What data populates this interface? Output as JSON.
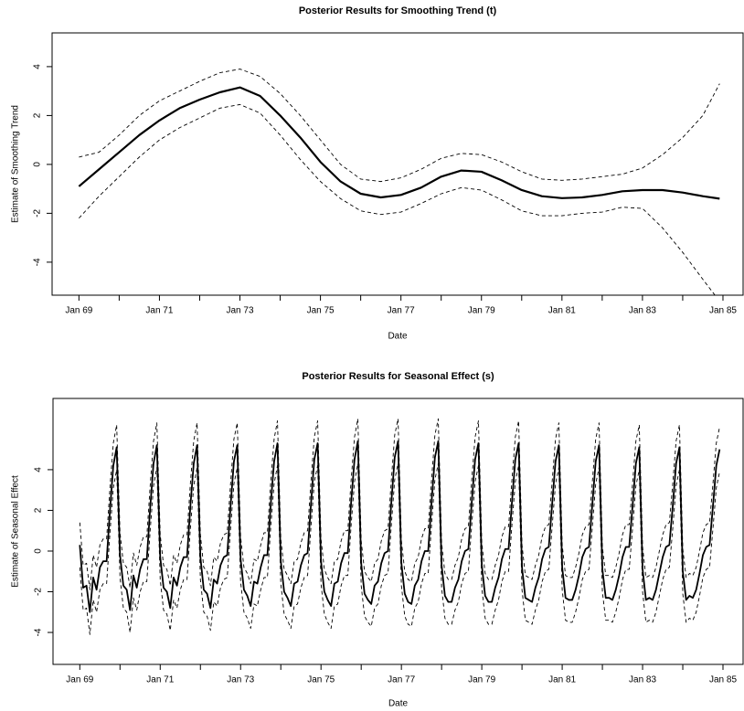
{
  "chart_data": [
    {
      "type": "line",
      "title": "Posterior Results for Smoothing Trend (t)",
      "x_label": "Date",
      "y_label": "Estimate of Smoothing Trend",
      "x": [
        "1969-01",
        "1969-07",
        "1970-01",
        "1970-07",
        "1971-01",
        "1971-07",
        "1972-01",
        "1972-07",
        "1973-01",
        "1973-07",
        "1974-01",
        "1974-07",
        "1975-01",
        "1975-07",
        "1976-01",
        "1976-07",
        "1977-01",
        "1977-07",
        "1978-01",
        "1978-07",
        "1979-01",
        "1979-07",
        "1980-01",
        "1980-07",
        "1981-01",
        "1981-07",
        "1982-01",
        "1982-07",
        "1983-01",
        "1983-07",
        "1984-01",
        "1984-07",
        "1984-12"
      ],
      "series": [
        {
          "color": "#000000",
          "dash": false,
          "width": 2.2,
          "values": [
            -0.9,
            -0.2,
            0.5,
            1.2,
            1.8,
            2.3,
            2.65,
            2.95,
            3.15,
            2.8,
            2.0,
            1.1,
            0.1,
            -0.7,
            -1.2,
            -1.35,
            -1.25,
            -0.95,
            -0.5,
            -0.25,
            -0.3,
            -0.65,
            -1.05,
            -1.3,
            -1.38,
            -1.35,
            -1.25,
            -1.1,
            -1.05,
            -1.05,
            -1.15,
            -1.3,
            -1.4
          ]
        },
        {
          "color": "#000000",
          "dash": true,
          "width": 0.9,
          "values": [
            0.3,
            0.5,
            1.2,
            2.0,
            2.6,
            3.0,
            3.4,
            3.75,
            3.9,
            3.6,
            2.9,
            2.0,
            1.0,
            0.0,
            -0.6,
            -0.7,
            -0.55,
            -0.2,
            0.25,
            0.45,
            0.4,
            0.1,
            -0.3,
            -0.6,
            -0.65,
            -0.6,
            -0.5,
            -0.4,
            -0.15,
            0.4,
            1.1,
            2.0,
            3.3
          ]
        },
        {
          "color": "#000000",
          "dash": true,
          "width": 0.9,
          "values": [
            -2.2,
            -1.3,
            -0.5,
            0.3,
            1.0,
            1.5,
            1.9,
            2.3,
            2.45,
            2.1,
            1.2,
            0.2,
            -0.7,
            -1.4,
            -1.9,
            -2.05,
            -1.95,
            -1.6,
            -1.2,
            -0.95,
            -1.05,
            -1.45,
            -1.9,
            -2.1,
            -2.1,
            -2.0,
            -1.95,
            -1.75,
            -1.8,
            -2.6,
            -3.6,
            -4.7,
            -5.6
          ]
        }
      ],
      "xlim": [
        "1968-05",
        "1985-07"
      ],
      "xticks": [
        {
          "value": "1969-01",
          "label": "Jan 69"
        },
        {
          "value": "1971-01",
          "label": "Jan 71"
        },
        {
          "value": "1973-01",
          "label": "Jan 73"
        },
        {
          "value": "1975-01",
          "label": "Jan 75"
        },
        {
          "value": "1977-01",
          "label": "Jan 77"
        },
        {
          "value": "1979-01",
          "label": "Jan 79"
        },
        {
          "value": "1981-01",
          "label": "Jan 81"
        },
        {
          "value": "1983-01",
          "label": "Jan 83"
        },
        {
          "value": "1985-01",
          "label": "Jan 85"
        }
      ],
      "xminorticks": [
        "1970-01",
        "1972-01",
        "1974-01",
        "1976-01",
        "1978-01",
        "1980-01",
        "1982-01",
        "1984-01"
      ],
      "ylim": [
        -5.35,
        5.38
      ],
      "yticks": [
        -4,
        -2,
        0,
        2,
        4
      ]
    },
    {
      "type": "line",
      "title": "Posterior Results for Seasonal Effect (s)",
      "x_label": "Date",
      "y_label": "Estimate of Seasonal Effect",
      "x": [
        "1969-01",
        "1969-02",
        "1969-03",
        "1969-04",
        "1969-05",
        "1969-06",
        "1969-07",
        "1969-08",
        "1969-09",
        "1969-10",
        "1969-11",
        "1969-12",
        "1970-01",
        "1970-02",
        "1970-03",
        "1970-04",
        "1970-05",
        "1970-06",
        "1970-07",
        "1970-08",
        "1970-09",
        "1970-10",
        "1970-11",
        "1970-12",
        "1971-01",
        "1971-02",
        "1971-03",
        "1971-04",
        "1971-05",
        "1971-06",
        "1971-07",
        "1971-08",
        "1971-09",
        "1971-10",
        "1971-11",
        "1971-12",
        "1972-01",
        "1972-02",
        "1972-03",
        "1972-04",
        "1972-05",
        "1972-06",
        "1972-07",
        "1972-08",
        "1972-09",
        "1972-10",
        "1972-11",
        "1972-12",
        "1973-01",
        "1973-02",
        "1973-03",
        "1973-04",
        "1973-05",
        "1973-06",
        "1973-07",
        "1973-08",
        "1973-09",
        "1973-10",
        "1973-11",
        "1973-12",
        "1974-01",
        "1974-02",
        "1974-03",
        "1974-04",
        "1974-05",
        "1974-06",
        "1974-07",
        "1974-08",
        "1974-09",
        "1974-10",
        "1974-11",
        "1974-12",
        "1975-01",
        "1975-02",
        "1975-03",
        "1975-04",
        "1975-05",
        "1975-06",
        "1975-07",
        "1975-08",
        "1975-09",
        "1975-10",
        "1975-11",
        "1975-12",
        "1976-01",
        "1976-02",
        "1976-03",
        "1976-04",
        "1976-05",
        "1976-06",
        "1976-07",
        "1976-08",
        "1976-09",
        "1976-10",
        "1976-11",
        "1976-12",
        "1977-01",
        "1977-02",
        "1977-03",
        "1977-04",
        "1977-05",
        "1977-06",
        "1977-07",
        "1977-08",
        "1977-09",
        "1977-10",
        "1977-11",
        "1977-12",
        "1978-01",
        "1978-02",
        "1978-03",
        "1978-04",
        "1978-05",
        "1978-06",
        "1978-07",
        "1978-08",
        "1978-09",
        "1978-10",
        "1978-11",
        "1978-12",
        "1979-01",
        "1979-02",
        "1979-03",
        "1979-04",
        "1979-05",
        "1979-06",
        "1979-07",
        "1979-08",
        "1979-09",
        "1979-10",
        "1979-11",
        "1979-12",
        "1980-01",
        "1980-02",
        "1980-03",
        "1980-04",
        "1980-05",
        "1980-06",
        "1980-07",
        "1980-08",
        "1980-09",
        "1980-10",
        "1980-11",
        "1980-12",
        "1981-01",
        "1981-02",
        "1981-03",
        "1981-04",
        "1981-05",
        "1981-06",
        "1981-07",
        "1981-08",
        "1981-09",
        "1981-10",
        "1981-11",
        "1981-12",
        "1982-01",
        "1982-02",
        "1982-03",
        "1982-04",
        "1982-05",
        "1982-06",
        "1982-07",
        "1982-08",
        "1982-09",
        "1982-10",
        "1982-11",
        "1982-12",
        "1983-01",
        "1983-02",
        "1983-03",
        "1983-04",
        "1983-05",
        "1983-06",
        "1983-07",
        "1983-08",
        "1983-09",
        "1983-10",
        "1983-11",
        "1983-12",
        "1984-01",
        "1984-02",
        "1984-03",
        "1984-04",
        "1984-05",
        "1984-06",
        "1984-07",
        "1984-08",
        "1984-09",
        "1984-10",
        "1984-11",
        "1984-12"
      ],
      "series": [
        {
          "color": "#000000",
          "dash": false,
          "width": 1.8,
          "values": [
            0.3,
            -1.8,
            -1.7,
            -3.0,
            -1.3,
            -1.9,
            -0.8,
            -0.5,
            -0.5,
            2.0,
            4.2,
            5.1,
            -0.2,
            -1.7,
            -1.9,
            -2.9,
            -1.2,
            -1.8,
            -0.9,
            -0.4,
            -0.4,
            2.1,
            4.3,
            5.2,
            -0.3,
            -1.8,
            -2.0,
            -2.8,
            -1.3,
            -1.7,
            -0.8,
            -0.3,
            -0.3,
            2.2,
            4.3,
            5.2,
            -0.3,
            -1.9,
            -2.1,
            -2.8,
            -1.4,
            -1.6,
            -0.7,
            -0.3,
            -0.2,
            2.2,
            4.4,
            5.2,
            -0.4,
            -1.9,
            -2.2,
            -2.7,
            -1.5,
            -1.6,
            -0.8,
            -0.2,
            -0.2,
            2.3,
            4.4,
            5.3,
            -0.5,
            -2.0,
            -2.3,
            -2.7,
            -1.6,
            -1.5,
            -0.7,
            -0.2,
            -0.1,
            2.3,
            4.5,
            5.3,
            -0.5,
            -2.0,
            -2.4,
            -2.7,
            -1.6,
            -1.5,
            -0.6,
            -0.1,
            -0.1,
            2.4,
            4.5,
            5.4,
            -0.6,
            -2.1,
            -2.4,
            -2.6,
            -1.7,
            -1.5,
            -0.6,
            -0.1,
            0.0,
            2.4,
            4.6,
            5.4,
            -0.6,
            -2.1,
            -2.5,
            -2.6,
            -1.7,
            -1.4,
            -0.5,
            0.0,
            0.0,
            2.4,
            4.6,
            5.4,
            -0.7,
            -2.2,
            -2.5,
            -2.5,
            -1.8,
            -1.4,
            -0.5,
            0.0,
            0.1,
            2.4,
            4.5,
            5.3,
            -0.7,
            -2.2,
            -2.5,
            -2.5,
            -1.8,
            -1.3,
            -0.4,
            0.1,
            0.1,
            2.4,
            4.5,
            5.3,
            -0.8,
            -2.3,
            -2.4,
            -2.5,
            -1.8,
            -1.3,
            -0.4,
            0.1,
            0.2,
            2.3,
            4.4,
            5.2,
            -0.8,
            -2.3,
            -2.4,
            -2.4,
            -1.9,
            -1.2,
            -0.3,
            0.1,
            0.2,
            2.3,
            4.4,
            5.2,
            -0.9,
            -2.3,
            -2.3,
            -2.4,
            -1.9,
            -1.2,
            -0.3,
            0.2,
            0.2,
            2.2,
            4.3,
            5.1,
            -0.9,
            -2.4,
            -2.3,
            -2.4,
            -1.9,
            -1.1,
            -0.3,
            0.2,
            0.3,
            2.2,
            4.3,
            5.1,
            -1.0,
            -2.4,
            -2.2,
            -2.3,
            -1.9,
            -1.1,
            -0.2,
            0.2,
            0.3,
            2.2,
            4.2,
            5.0
          ]
        },
        {
          "color": "#000000",
          "dash": true,
          "width": 0.9,
          "values": [
            1.4,
            -0.7,
            -0.6,
            -1.9,
            -0.2,
            -0.8,
            0.3,
            0.6,
            0.6,
            3.1,
            5.3,
            6.2,
            0.9,
            -0.6,
            -0.8,
            -1.8,
            -0.1,
            -0.7,
            0.2,
            0.7,
            0.7,
            3.2,
            5.4,
            6.3,
            0.8,
            -0.7,
            -0.9,
            -1.7,
            -0.2,
            -0.6,
            0.3,
            0.8,
            0.8,
            3.3,
            5.4,
            6.3,
            0.8,
            -0.8,
            -1.0,
            -1.7,
            -0.3,
            -0.5,
            0.4,
            0.8,
            0.9,
            3.3,
            5.5,
            6.3,
            0.7,
            -0.8,
            -1.1,
            -1.6,
            -0.4,
            -0.5,
            0.3,
            0.9,
            0.9,
            3.4,
            5.5,
            6.4,
            0.6,
            -0.9,
            -1.2,
            -1.6,
            -0.5,
            -0.4,
            0.4,
            0.9,
            1.0,
            3.4,
            5.6,
            6.4,
            0.6,
            -0.9,
            -1.3,
            -1.6,
            -0.5,
            -0.4,
            0.5,
            1.0,
            1.0,
            3.5,
            5.6,
            6.5,
            0.5,
            -1.0,
            -1.3,
            -1.5,
            -0.6,
            -0.4,
            0.5,
            1.0,
            1.1,
            3.5,
            5.7,
            6.5,
            0.5,
            -1.0,
            -1.4,
            -1.5,
            -0.6,
            -0.3,
            0.6,
            1.1,
            1.1,
            3.5,
            5.7,
            6.5,
            0.4,
            -1.1,
            -1.4,
            -1.4,
            -0.7,
            -0.3,
            0.6,
            1.1,
            1.2,
            3.5,
            5.6,
            6.4,
            0.4,
            -1.1,
            -1.4,
            -1.4,
            -0.7,
            -0.2,
            0.7,
            1.2,
            1.2,
            3.5,
            5.6,
            6.4,
            0.3,
            -1.2,
            -1.3,
            -1.4,
            -0.7,
            -0.2,
            0.7,
            1.2,
            1.3,
            3.4,
            5.5,
            6.3,
            0.3,
            -1.2,
            -1.3,
            -1.3,
            -0.8,
            -0.1,
            0.8,
            1.2,
            1.3,
            3.4,
            5.5,
            6.3,
            0.2,
            -1.2,
            -1.2,
            -1.3,
            -0.8,
            -0.1,
            0.8,
            1.3,
            1.3,
            3.3,
            5.4,
            6.2,
            0.2,
            -1.3,
            -1.2,
            -1.3,
            -0.8,
            0.0,
            0.8,
            1.3,
            1.4,
            3.3,
            5.4,
            6.2,
            0.1,
            -1.3,
            -1.1,
            -1.2,
            -0.8,
            0.0,
            0.9,
            1.3,
            1.4,
            3.3,
            5.3,
            6.1
          ]
        },
        {
          "color": "#000000",
          "dash": true,
          "width": 0.9,
          "values": [
            -0.8,
            -2.9,
            -2.8,
            -4.1,
            -2.4,
            -3.0,
            -1.9,
            -1.6,
            -1.6,
            0.9,
            3.1,
            4.0,
            -1.3,
            -2.8,
            -3.0,
            -4.0,
            -2.3,
            -2.9,
            -2.0,
            -1.5,
            -1.5,
            1.0,
            3.2,
            4.1,
            -1.4,
            -2.9,
            -3.1,
            -3.9,
            -2.4,
            -2.8,
            -1.9,
            -1.4,
            -1.4,
            1.1,
            3.2,
            4.1,
            -1.4,
            -3.0,
            -3.2,
            -3.9,
            -2.5,
            -2.7,
            -1.8,
            -1.4,
            -1.3,
            1.1,
            3.3,
            4.1,
            -1.5,
            -3.0,
            -3.3,
            -3.8,
            -2.6,
            -2.7,
            -1.9,
            -1.3,
            -1.3,
            1.2,
            3.3,
            4.2,
            -1.6,
            -3.1,
            -3.4,
            -3.8,
            -2.7,
            -2.6,
            -1.8,
            -1.3,
            -1.2,
            1.2,
            3.4,
            4.2,
            -1.6,
            -3.1,
            -3.5,
            -3.8,
            -2.7,
            -2.6,
            -1.7,
            -1.2,
            -1.2,
            1.3,
            3.4,
            4.3,
            -1.7,
            -3.2,
            -3.5,
            -3.7,
            -2.8,
            -2.6,
            -1.7,
            -1.2,
            -1.1,
            1.3,
            3.5,
            4.3,
            -1.7,
            -3.2,
            -3.6,
            -3.7,
            -2.8,
            -2.5,
            -1.6,
            -1.1,
            -1.1,
            1.3,
            3.5,
            4.3,
            -1.8,
            -3.3,
            -3.6,
            -3.6,
            -2.9,
            -2.5,
            -1.6,
            -1.1,
            -1.0,
            1.3,
            3.4,
            4.2,
            -1.8,
            -3.3,
            -3.6,
            -3.6,
            -2.9,
            -2.4,
            -1.5,
            -1.0,
            -1.0,
            1.3,
            3.4,
            4.2,
            -1.9,
            -3.4,
            -3.5,
            -3.6,
            -2.9,
            -2.4,
            -1.5,
            -1.0,
            -0.9,
            1.2,
            3.3,
            4.1,
            -1.9,
            -3.4,
            -3.5,
            -3.5,
            -3.0,
            -2.3,
            -1.4,
            -1.0,
            -0.9,
            1.2,
            3.3,
            4.1,
            -2.0,
            -3.4,
            -3.4,
            -3.5,
            -3.0,
            -2.3,
            -1.4,
            -0.9,
            -0.9,
            1.1,
            3.2,
            4.0,
            -2.0,
            -3.5,
            -3.4,
            -3.5,
            -3.0,
            -2.2,
            -1.4,
            -0.9,
            -0.8,
            1.1,
            3.2,
            4.0,
            -2.1,
            -3.5,
            -3.3,
            -3.4,
            -3.0,
            -2.2,
            -1.3,
            -0.9,
            -0.8,
            1.1,
            3.1,
            3.9
          ]
        }
      ],
      "xlim": [
        "1968-05",
        "1985-07"
      ],
      "xticks": [
        {
          "value": "1969-01",
          "label": "Jan 69"
        },
        {
          "value": "1971-01",
          "label": "Jan 71"
        },
        {
          "value": "1973-01",
          "label": "Jan 73"
        },
        {
          "value": "1975-01",
          "label": "Jan 75"
        },
        {
          "value": "1977-01",
          "label": "Jan 77"
        },
        {
          "value": "1979-01",
          "label": "Jan 79"
        },
        {
          "value": "1981-01",
          "label": "Jan 81"
        },
        {
          "value": "1983-01",
          "label": "Jan 83"
        },
        {
          "value": "1985-01",
          "label": "Jan 85"
        }
      ],
      "xminorticks": [
        "1970-01",
        "1972-01",
        "1974-01",
        "1976-01",
        "1978-01",
        "1980-01",
        "1982-01",
        "1984-01"
      ],
      "ylim": [
        -5.57,
        7.5
      ],
      "yticks": [
        -4,
        -2,
        0,
        2,
        4
      ]
    }
  ]
}
